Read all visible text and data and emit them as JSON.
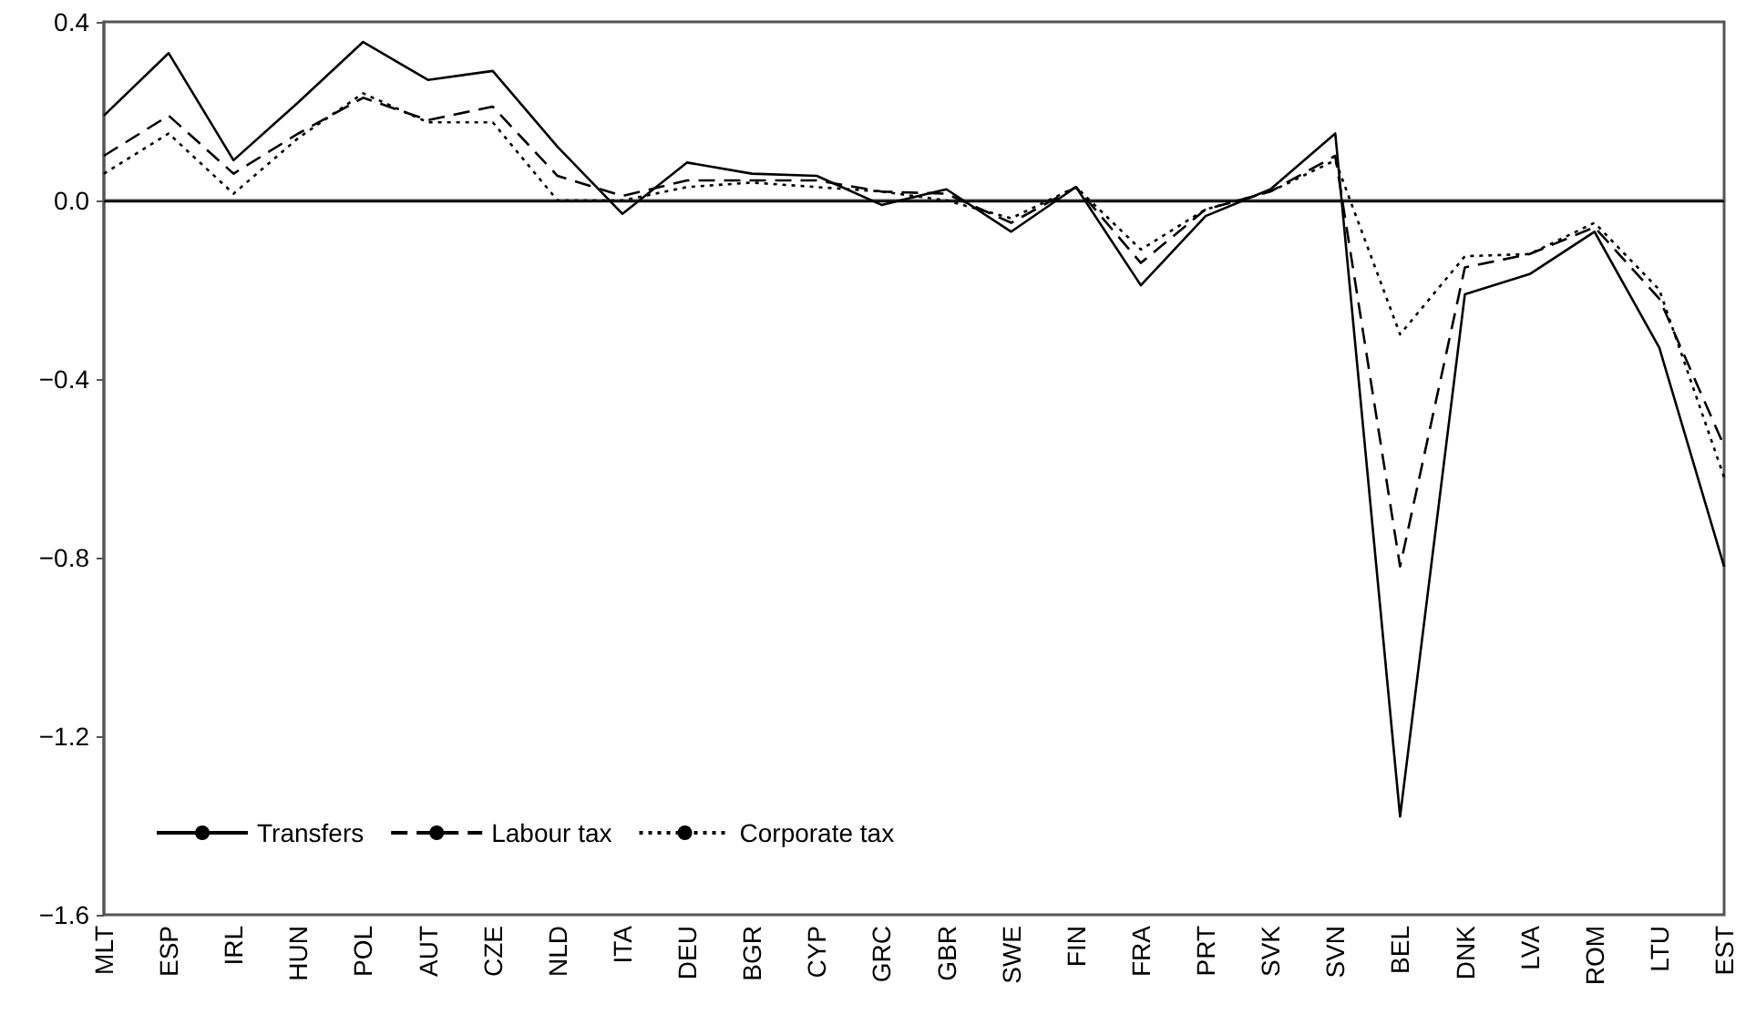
{
  "chart_data": {
    "type": "line",
    "categories": [
      "MLT",
      "ESP",
      "IRL",
      "HUN",
      "POL",
      "AUT",
      "CZE",
      "NLD",
      "ITA",
      "DEU",
      "BGR",
      "CYP",
      "GRC",
      "GBR",
      "SWE",
      "FIN",
      "FRA",
      "PRT",
      "SVK",
      "SVN",
      "BEL",
      "DNK",
      "LVA",
      "ROM",
      "LTU",
      "EST"
    ],
    "series": [
      {
        "name": "Transfers",
        "color": "#000000",
        "line_style": "solid",
        "values": [
          0.19,
          0.33,
          0.09,
          0.22,
          0.355,
          0.27,
          0.29,
          0.12,
          -0.03,
          0.085,
          0.06,
          0.055,
          -0.01,
          0.025,
          -0.07,
          0.03,
          -0.19,
          -0.035,
          0.025,
          0.15,
          -1.38,
          -0.21,
          -0.165,
          -0.07,
          -0.33,
          -0.82
        ]
      },
      {
        "name": "Labour tax",
        "color": "#000000",
        "line_style": "dashed",
        "values": [
          0.1,
          0.19,
          0.06,
          0.15,
          0.23,
          0.18,
          0.21,
          0.055,
          0.01,
          0.045,
          0.045,
          0.045,
          0.02,
          0.015,
          -0.05,
          0.03,
          -0.14,
          -0.02,
          0.02,
          0.1,
          -0.82,
          -0.15,
          -0.12,
          -0.06,
          -0.22,
          -0.55
        ]
      },
      {
        "name": "Corporate tax",
        "color": "#000000",
        "line_style": "dotted",
        "values": [
          0.06,
          0.15,
          0.015,
          0.14,
          0.24,
          0.175,
          0.175,
          0.0,
          0.0,
          0.03,
          0.04,
          0.03,
          0.02,
          0.0,
          -0.04,
          0.03,
          -0.11,
          -0.02,
          0.02,
          0.09,
          -0.3,
          -0.125,
          -0.12,
          -0.05,
          -0.2,
          -0.62
        ]
      }
    ],
    "ylim": [
      -1.6,
      0.4
    ],
    "yticks": [
      {
        "value": -1.6,
        "label": "−1.6"
      },
      {
        "value": -1.2,
        "label": "−1.2"
      },
      {
        "value": -0.8,
        "label": "−0.8"
      },
      {
        "value": -0.4,
        "label": "−0.4"
      },
      {
        "value": 0,
        "label": "0.0"
      },
      0.4
    ],
    "ref_lines": [
      {
        "axis": "y",
        "value": 0,
        "color": "#000000"
      }
    ],
    "grid": false,
    "marker": "none",
    "legend": "bottom left"
  }
}
